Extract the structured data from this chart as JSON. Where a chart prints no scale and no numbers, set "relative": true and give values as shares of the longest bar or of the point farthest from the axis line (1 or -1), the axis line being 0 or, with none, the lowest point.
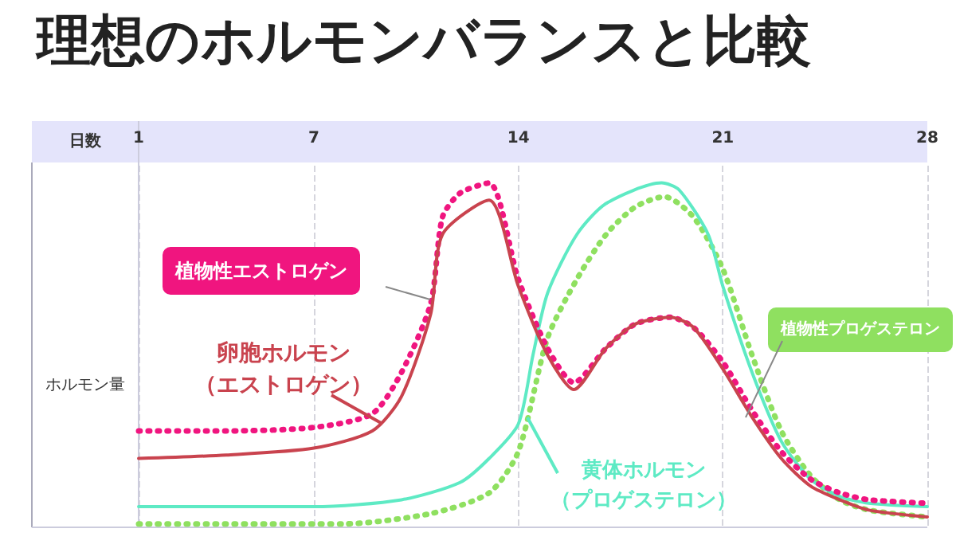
{
  "chart_data": {
    "type": "line",
    "title": "理想のホルモンバランスと比較",
    "xlabel": "日数",
    "ylabel": "ホルモン量",
    "relative": true,
    "xlim": [
      1,
      28
    ],
    "xticks": [
      1,
      7,
      14,
      21,
      28
    ],
    "grid": "x",
    "legend": false,
    "marker": "none",
    "series": [
      {
        "name": "卵胞ホルモン（エストロゲン）",
        "color": "#c9434e",
        "line_style": "solid",
        "x": [
          1,
          4,
          7,
          9,
          10,
          11,
          11.4,
          13,
          14,
          15,
          15.9,
          17,
          18,
          19.2,
          20,
          21,
          22,
          23,
          24,
          25,
          26,
          28
        ],
        "values": [
          0.2,
          0.21,
          0.23,
          0.28,
          0.38,
          0.62,
          0.85,
          0.95,
          0.7,
          0.5,
          0.4,
          0.52,
          0.59,
          0.61,
          0.58,
          0.46,
          0.32,
          0.2,
          0.12,
          0.08,
          0.05,
          0.03
        ]
      },
      {
        "name": "植物性エストロゲン",
        "color": "#f0157f",
        "line_style": "dotted",
        "x": [
          1,
          4,
          7,
          9,
          10,
          11,
          11.4,
          12,
          13,
          14,
          15,
          15.9,
          17,
          18,
          19.2,
          20,
          21,
          22,
          23,
          24,
          25,
          26,
          28
        ],
        "values": [
          0.28,
          0.28,
          0.29,
          0.33,
          0.45,
          0.65,
          0.9,
          0.97,
          1,
          0.72,
          0.52,
          0.42,
          0.52,
          0.59,
          0.61,
          0.58,
          0.48,
          0.34,
          0.22,
          0.14,
          0.1,
          0.08,
          0.07
        ]
      },
      {
        "name": "黄体ホルモン（プロゲステロン）",
        "color": "#5eeac4",
        "line_style": "solid",
        "x": [
          1,
          7,
          10,
          12,
          13,
          14,
          14.5,
          15,
          16,
          17,
          18.9,
          19.5,
          20.5,
          21,
          22,
          23,
          24,
          25,
          26,
          28
        ],
        "values": [
          0.06,
          0.06,
          0.08,
          0.13,
          0.2,
          0.3,
          0.5,
          0.68,
          0.85,
          0.94,
          1,
          0.98,
          0.85,
          0.7,
          0.45,
          0.25,
          0.14,
          0.09,
          0.07,
          0.06
        ]
      },
      {
        "name": "植物性プロゲステロン",
        "color": "#8fe060",
        "line_style": "dotted",
        "x": [
          1,
          8,
          11,
          13,
          14,
          15,
          16,
          17,
          18,
          19,
          20,
          21,
          22,
          23,
          24,
          25,
          26,
          28
        ],
        "values": [
          0.01,
          0.01,
          0.04,
          0.1,
          0.22,
          0.55,
          0.72,
          0.85,
          0.93,
          0.96,
          0.9,
          0.75,
          0.5,
          0.28,
          0.15,
          0.08,
          0.05,
          0.03
        ]
      }
    ]
  }
}
